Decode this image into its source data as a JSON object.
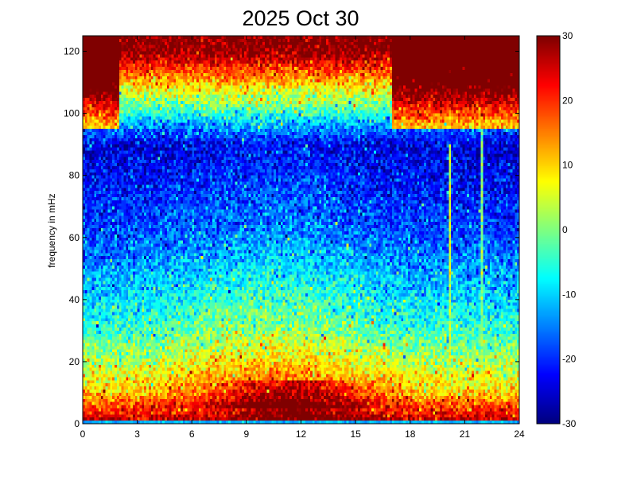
{
  "chart_data": {
    "type": "heatmap",
    "title": "2025 Oct 30",
    "xlabel": "",
    "ylabel": "frequency in mHz",
    "xlim": [
      0,
      24
    ],
    "ylim": [
      0,
      125
    ],
    "x_ticks": [
      0,
      3,
      6,
      9,
      12,
      15,
      18,
      21,
      24
    ],
    "y_ticks": [
      0,
      20,
      40,
      60,
      80,
      100,
      120
    ],
    "colorbar": {
      "colormap": "jet",
      "range": [
        -30,
        30
      ],
      "ticks": [
        -30,
        -20,
        -10,
        0,
        10,
        20,
        30
      ]
    },
    "grid": false,
    "features": [
      {
        "description": "broadband power peak near 12 h at low frequency",
        "x": 12,
        "y": 3,
        "value": 30
      },
      {
        "description": "narrow vertical line",
        "x": 20.2,
        "y_range": [
          0,
          90
        ],
        "value": 5
      },
      {
        "description": "narrow vertical line",
        "x": 21.9,
        "y_range": [
          0,
          125
        ],
        "value": 0
      }
    ],
    "noise_floor_by_frequency": [
      {
        "freq": 2,
        "value": 25
      },
      {
        "freq": 10,
        "value": 10
      },
      {
        "freq": 30,
        "value": -5
      },
      {
        "freq": 60,
        "value": -18
      },
      {
        "freq": 90,
        "value": -25
      },
      {
        "freq": 120,
        "value": 30
      }
    ]
  }
}
